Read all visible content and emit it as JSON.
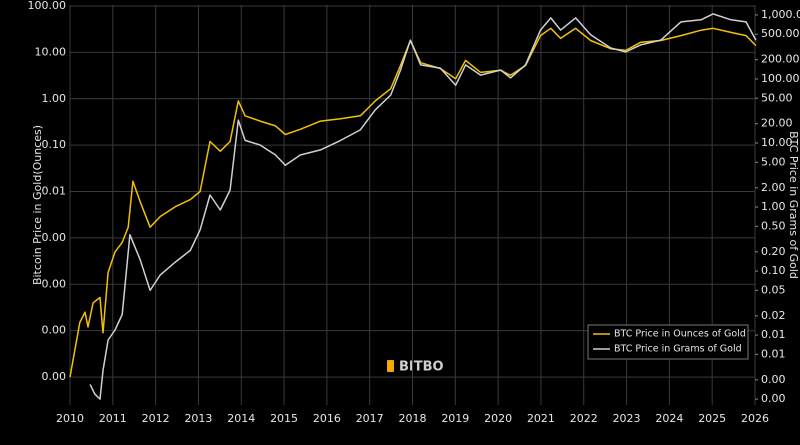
{
  "chart_data": {
    "type": "line",
    "log_scale": true,
    "grid": true,
    "legend_position": "lower-right",
    "watermark": "BITBO",
    "ylabel": "Bitcoin Price in Gold(Ounces)",
    "y2label": "BTC Price in Grams of Gold",
    "xlim": [
      2010,
      2026
    ],
    "xticks": [
      2010,
      2011,
      2012,
      2013,
      2014,
      2015,
      2016,
      2017,
      2018,
      2019,
      2020,
      2021,
      2022,
      2023,
      2024,
      2025,
      2026
    ],
    "ylim": [
      2.5e-07,
      105
    ],
    "yticks": [
      {
        "value": 100,
        "label": "100.00"
      },
      {
        "value": 10,
        "label": "10.00"
      },
      {
        "value": 1,
        "label": "1.00"
      },
      {
        "value": 0.1,
        "label": "0.10"
      },
      {
        "value": 0.01,
        "label": "0.01"
      },
      {
        "value": 0.001,
        "label": "0.00"
      },
      {
        "value": 0.0001,
        "label": "0.00"
      },
      {
        "value": 1e-05,
        "label": "0.00"
      },
      {
        "value": 1e-06,
        "label": "0.00"
      }
    ],
    "y2lim": [
      0.00081,
      1430
    ],
    "y2ticks": [
      {
        "value": 1000,
        "label": "1,000.00"
      },
      {
        "value": 500,
        "label": "500.00"
      },
      {
        "value": 200,
        "label": "200.00"
      },
      {
        "value": 100,
        "label": "100.00"
      },
      {
        "value": 50,
        "label": "50.00"
      },
      {
        "value": 20,
        "label": "20.00"
      },
      {
        "value": 10,
        "label": "10.00"
      },
      {
        "value": 5,
        "label": "5.00"
      },
      {
        "value": 2,
        "label": "2.00"
      },
      {
        "value": 1,
        "label": "1.00"
      },
      {
        "value": 0.5,
        "label": "0.50"
      },
      {
        "value": 0.2,
        "label": "0.20"
      },
      {
        "value": 0.1,
        "label": "0.10"
      },
      {
        "value": 0.05,
        "label": "0.05"
      },
      {
        "value": 0.02,
        "label": "0.02"
      },
      {
        "value": 0.01,
        "label": "0.01"
      },
      {
        "value": 0.005,
        "label": "0.01"
      },
      {
        "value": 0.002,
        "label": "0.00"
      },
      {
        "value": 0.001,
        "label": "0.00"
      }
    ],
    "series": [
      {
        "name": "BTC Price in Ounces of Gold",
        "color": "#f2c200",
        "x": [
          2010.0,
          2010.23,
          2010.35,
          2010.42,
          2010.54,
          2010.7,
          2010.77,
          2010.89,
          2011.05,
          2011.22,
          2011.36,
          2011.47,
          2011.64,
          2011.87,
          2012.11,
          2012.46,
          2012.81,
          2013.04,
          2013.27,
          2013.51,
          2013.74,
          2013.93,
          2014.09,
          2014.44,
          2014.8,
          2015.03,
          2015.38,
          2015.85,
          2016.32,
          2016.78,
          2017.13,
          2017.49,
          2017.72,
          2017.95,
          2018.19,
          2018.65,
          2019.01,
          2019.24,
          2019.59,
          2020.06,
          2020.29,
          2020.64,
          2020.99,
          2021.23,
          2021.46,
          2021.81,
          2022.16,
          2022.63,
          2022.98,
          2023.33,
          2023.8,
          2024.27,
          2024.74,
          2025.02,
          2025.44,
          2025.79,
          2026.02
        ],
        "values": [
          1e-06,
          1.5e-05,
          2.5e-05,
          1.2e-05,
          4e-05,
          5.2e-05,
          9e-06,
          0.00018,
          0.0005,
          0.0008,
          0.0017,
          0.0166,
          0.006,
          0.0017,
          0.0029,
          0.0047,
          0.0067,
          0.01,
          0.12,
          0.074,
          0.12,
          0.9,
          0.43,
          0.33,
          0.26,
          0.17,
          0.22,
          0.33,
          0.37,
          0.43,
          0.9,
          1.65,
          5.2,
          18,
          6,
          4.5,
          2.7,
          6.7,
          3.7,
          4.1,
          3.2,
          5.2,
          23,
          33,
          20,
          33,
          18,
          12,
          11,
          16.5,
          18,
          23,
          30,
          33,
          27,
          23,
          14
        ]
      },
      {
        "name": "BTC Price in Grams of Gold",
        "color": "#d0d0d0",
        "axis": "y2",
        "x": [
          2010.47,
          2010.58,
          2010.7,
          2010.77,
          2010.89,
          2011.05,
          2011.22,
          2011.4,
          2011.64,
          2011.87,
          2012.11,
          2012.46,
          2012.81,
          2013.04,
          2013.27,
          2013.51,
          2013.74,
          2013.93,
          2014.09,
          2014.44,
          2014.8,
          2015.03,
          2015.38,
          2015.85,
          2016.32,
          2016.78,
          2017.13,
          2017.49,
          2017.72,
          2017.95,
          2018.19,
          2018.65,
          2019.01,
          2019.24,
          2019.59,
          2020.06,
          2020.29,
          2020.64,
          2020.99,
          2021.23,
          2021.46,
          2021.81,
          2022.16,
          2022.63,
          2022.98,
          2023.33,
          2023.8,
          2024.27,
          2024.74,
          2025.02,
          2025.44,
          2025.79,
          2026.02
        ],
        "values": [
          0.0017,
          0.0012,
          0.001,
          0.0028,
          0.0084,
          0.012,
          0.021,
          0.37,
          0.15,
          0.05,
          0.087,
          0.138,
          0.21,
          0.44,
          1.54,
          0.9,
          1.84,
          22.8,
          11,
          9.3,
          6.5,
          4.5,
          6.5,
          7.8,
          11,
          16,
          33,
          56,
          138,
          405,
          166,
          148,
          80,
          166,
          115,
          138,
          104,
          166,
          580,
          900,
          580,
          900,
          490,
          305,
          265,
          340,
          405,
          780,
          840,
          1040,
          840,
          780,
          405
        ]
      }
    ]
  }
}
